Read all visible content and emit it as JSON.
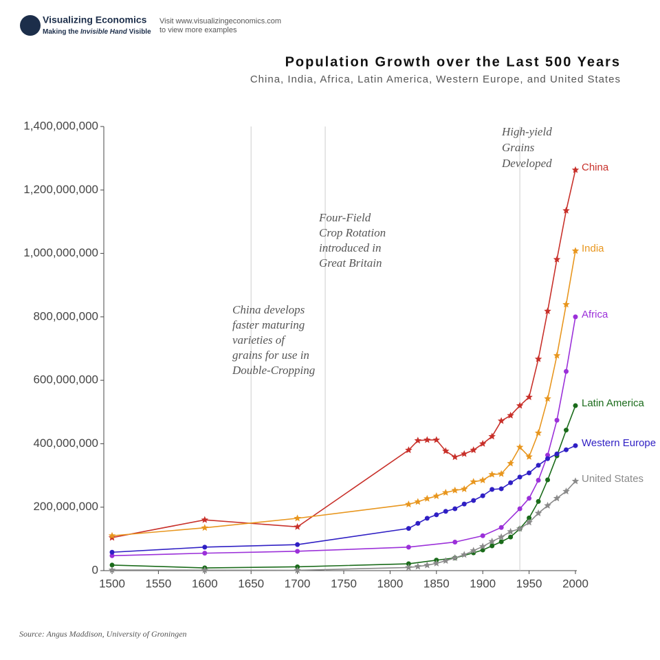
{
  "header": {
    "logo": "Visualizing Economics",
    "tagline": [
      "Making the",
      "Invisible Hand",
      "Visible"
    ],
    "visit": "Visit www.visualizingeconomics.com",
    "visit_sub": "to view more examples"
  },
  "chart_data": {
    "type": "line",
    "title": "Population Growth over the Last 500 Years",
    "subtitle": "China, India, Africa, Latin America, Western Europe, and United States",
    "source": "Source: Angus Maddison, University of Groningen",
    "xlim": [
      1500,
      2000
    ],
    "xticks": [
      1500,
      1550,
      1600,
      1650,
      1700,
      1750,
      1800,
      1850,
      1900,
      1950,
      2000
    ],
    "ylim": [
      0,
      1400000000
    ],
    "yticks": [
      0,
      {
        "value": 200000000,
        "label": "200,000,000"
      },
      {
        "value": 400000000,
        "label": "400,000,000"
      },
      {
        "value": 600000000,
        "label": "600,000,000"
      },
      {
        "value": 800000000,
        "label": "800,000,000"
      },
      {
        "value": 1000000000,
        "label": "1,000,000,000"
      },
      {
        "value": 1200000000,
        "label": "1,200,000,000"
      },
      {
        "value": 1400000000,
        "label": "1,400,000,000"
      }
    ],
    "annotations": [
      {
        "x": 1650,
        "text": [
          "China develops",
          "faster maturing",
          "varieties of",
          "grains for use in",
          "Double-Cropping"
        ]
      },
      {
        "x": 1730,
        "text": [
          "Four-Field",
          "Crop Rotation",
          "introduced in",
          "Great Britain"
        ]
      },
      {
        "x": 1940,
        "text": [
          "High-yield",
          "Grains",
          "Developed"
        ]
      }
    ],
    "series": [
      {
        "name": "China",
        "color": "#c8302a",
        "marker": "star",
        "x": [
          1500,
          1600,
          1700,
          1820,
          1830,
          1840,
          1850,
          1860,
          1870,
          1880,
          1890,
          1900,
          1910,
          1920,
          1930,
          1940,
          1950,
          1960,
          1970,
          1980,
          1990,
          2000
        ],
        "values": [
          104000000,
          160000000,
          138000000,
          380000000,
          410000000,
          412000000,
          412000000,
          377000000,
          358000000,
          368000000,
          380000000,
          400000000,
          423000000,
          472000000,
          489000000,
          520000000,
          547000000,
          667000000,
          818000000,
          981000000,
          1135000000,
          1263000000
        ]
      },
      {
        "name": "India",
        "color": "#e8961e",
        "marker": "star",
        "x": [
          1500,
          1600,
          1700,
          1820,
          1830,
          1840,
          1850,
          1860,
          1870,
          1880,
          1890,
          1900,
          1910,
          1920,
          1930,
          1940,
          1950,
          1960,
          1970,
          1980,
          1990,
          2000
        ],
        "values": [
          110000000,
          135000000,
          165000000,
          209000000,
          217000000,
          227000000,
          235000000,
          246000000,
          253000000,
          257000000,
          280000000,
          285000000,
          303000000,
          305000000,
          338000000,
          389000000,
          359000000,
          434000000,
          542000000,
          678000000,
          839000000,
          1008000000
        ]
      },
      {
        "name": "Africa",
        "color": "#9b30d9",
        "marker": "circle",
        "x": [
          1500,
          1600,
          1700,
          1820,
          1870,
          1900,
          1920,
          1940,
          1950,
          1960,
          1970,
          1980,
          1990,
          2000
        ],
        "values": [
          47000000,
          55000000,
          61000000,
          74000000,
          90000000,
          110000000,
          136000000,
          195000000,
          228000000,
          285000000,
          364000000,
          474000000,
          628000000,
          800000000
        ]
      },
      {
        "name": "Latin America",
        "color": "#1a6b1a",
        "marker": "circle",
        "x": [
          1500,
          1600,
          1700,
          1820,
          1850,
          1870,
          1890,
          1900,
          1910,
          1920,
          1930,
          1940,
          1950,
          1960,
          1970,
          1980,
          1990,
          2000
        ],
        "values": [
          17500000,
          8600000,
          12000000,
          21600000,
          33000000,
          40000000,
          56000000,
          65000000,
          78000000,
          91000000,
          106000000,
          132000000,
          166000000,
          218000000,
          286000000,
          362000000,
          443000000,
          520000000
        ]
      },
      {
        "name": "Western Europe",
        "color": "#2f1fc4",
        "marker": "circle",
        "x": [
          1500,
          1600,
          1700,
          1820,
          1830,
          1840,
          1850,
          1860,
          1870,
          1880,
          1890,
          1900,
          1910,
          1920,
          1930,
          1940,
          1950,
          1960,
          1970,
          1980,
          1990,
          2000
        ],
        "values": [
          58000000,
          74000000,
          82000000,
          133000000,
          149000000,
          165000000,
          176000000,
          187000000,
          195000000,
          210000000,
          221000000,
          236000000,
          256000000,
          258000000,
          277000000,
          295000000,
          308000000,
          332000000,
          353000000,
          368000000,
          381000000,
          394000000
        ]
      },
      {
        "name": "United States",
        "color": "#8a8a8a",
        "marker": "star",
        "x": [
          1500,
          1600,
          1700,
          1820,
          1830,
          1840,
          1850,
          1860,
          1870,
          1880,
          1890,
          1900,
          1910,
          1920,
          1930,
          1940,
          1950,
          1960,
          1970,
          1980,
          1990,
          2000
        ],
        "values": [
          2000000,
          1500000,
          1000000,
          10000000,
          13000000,
          17000000,
          23000000,
          31000000,
          40000000,
          50000000,
          63000000,
          76000000,
          92000000,
          106000000,
          123000000,
          132000000,
          152000000,
          181000000,
          205000000,
          228000000,
          250000000,
          282000000
        ]
      }
    ]
  }
}
